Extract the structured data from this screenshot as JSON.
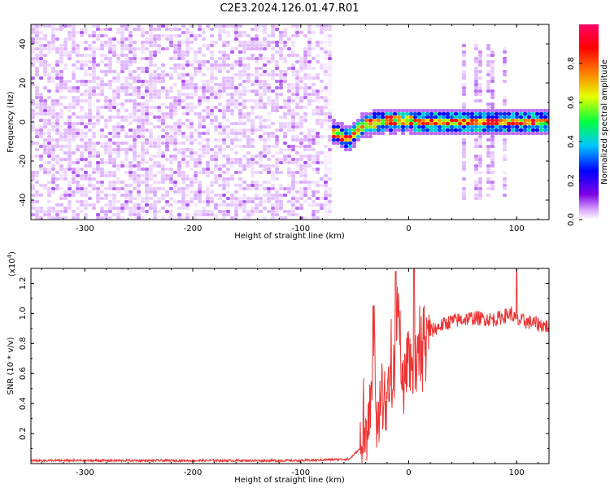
{
  "title": "C2E3.2024.126.01.47.R01",
  "chart_data": [
    {
      "type": "heatmap",
      "xlabel": "Height of straight line (km)",
      "ylabel": "Frequency (Hz)",
      "xlim": [
        -350,
        130
      ],
      "ylim": [
        -50,
        50
      ],
      "xticks": [
        -300,
        -200,
        -100,
        0,
        100
      ],
      "yticks": [
        -40,
        -20,
        0,
        20,
        40
      ],
      "colorbar": {
        "label": "Normalized spectral amplitude",
        "range": [
          0,
          1
        ],
        "ticks": [
          "0.0",
          "0.2",
          "0.4",
          "0.6",
          "0.8"
        ],
        "colors": [
          "#ffffff",
          "#d9a6ff",
          "#7d00e6",
          "#0000ff",
          "#00c8ff",
          "#00ff40",
          "#e6ff00",
          "#ff8000",
          "#ff0000",
          "#ff0066"
        ]
      },
      "noise_region": {
        "x_range": [
          -350,
          -72
        ],
        "freq_range": [
          -50,
          50
        ],
        "amplitude": 0.15
      },
      "ridge": {
        "description_points_x": [
          -72,
          -65,
          -60,
          -55,
          -50,
          -45,
          -40,
          -35,
          -30,
          -25,
          -20,
          -15,
          -10,
          -5,
          0,
          5,
          10,
          130
        ],
        "freq": [
          -5,
          -6,
          -8,
          -9,
          -6,
          -3,
          -1,
          -1,
          0,
          0,
          1,
          0,
          1,
          0,
          1,
          0,
          0,
          0
        ],
        "amplitude": 0.85
      },
      "burst_region": {
        "x_range": [
          50,
          90
        ],
        "freq_range": [
          -40,
          40
        ],
        "amplitude": 0.25
      }
    },
    {
      "type": "line",
      "xlabel": "Height of straight line (km)",
      "ylabel": "SNR (10 * v/v)",
      "y_multiplier_label": "(x10",
      "y_multiplier_exp": "4",
      "xlim": [
        -350,
        130
      ],
      "ylim": [
        0,
        1.3
      ],
      "xticks": [
        -300,
        -200,
        -100,
        0,
        100
      ],
      "yticks": [
        "0.2",
        "0.4",
        "0.6",
        "0.8",
        "1.0",
        "1.2"
      ],
      "color": "#ee3333",
      "x": [
        -350,
        -300,
        -200,
        -100,
        -55,
        -45,
        -40,
        -35,
        -32,
        -30,
        -25,
        -20,
        -15,
        -12,
        -10,
        -5,
        0,
        5,
        10,
        20,
        30,
        40,
        60,
        80,
        95,
        100,
        105,
        120,
        130
      ],
      "y": [
        0.02,
        0.02,
        0.02,
        0.02,
        0.03,
        0.1,
        0.2,
        0.35,
        0.85,
        0.3,
        0.45,
        0.4,
        0.6,
        0.55,
        1.0,
        0.55,
        0.75,
        0.6,
        0.8,
        0.88,
        0.92,
        0.95,
        0.97,
        0.96,
        1.0,
        0.95,
        0.95,
        0.93,
        0.91
      ],
      "spikes": [
        {
          "x": -33,
          "y": 1.05
        },
        {
          "x": -12,
          "y": 1.28
        },
        {
          "x": 5,
          "y": 1.3
        },
        {
          "x": 100,
          "y": 1.3
        }
      ]
    }
  ]
}
